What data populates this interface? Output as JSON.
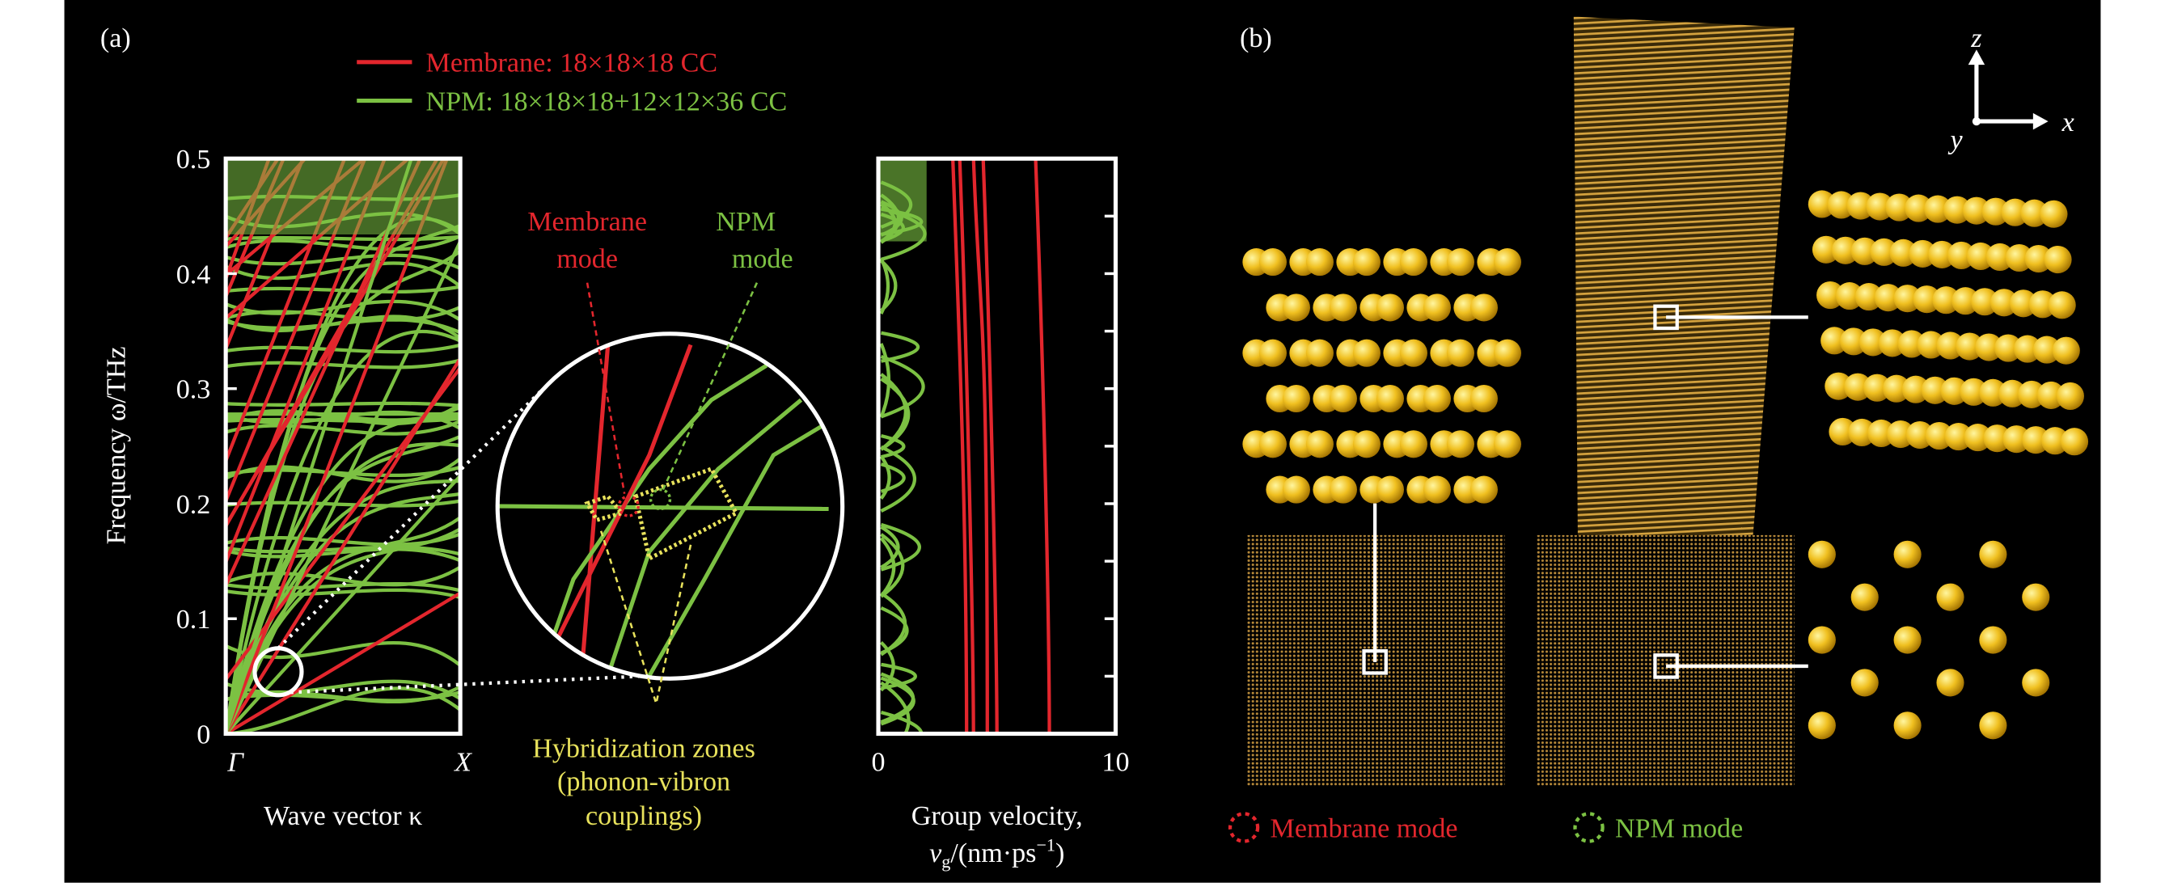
{
  "panel_a": {
    "label": "(a)",
    "legend": [
      {
        "text": "Membrane: 18×18×18 CC",
        "color": "#e3262d"
      },
      {
        "text": "NPM: 18×18×18+12×12×36 CC",
        "color": "#7cc143"
      }
    ],
    "dispersion": {
      "ylabel": "Frequency ω/THz",
      "xlabel": "Wave vector κ",
      "ylim": [
        0,
        0.5
      ],
      "yticks": [
        0,
        0.1,
        0.2,
        0.3,
        0.4,
        0.5
      ],
      "xticks": [
        "Γ",
        "X"
      ]
    },
    "zoom": {
      "membrane_label": [
        "Membrane",
        "mode"
      ],
      "npm_label": [
        "NPM",
        "mode"
      ],
      "hybrid_label": [
        "Hybridization zones",
        "(phonon-vibron",
        "couplings)"
      ]
    },
    "velocity": {
      "xlabel": [
        "Group velocity,",
        [
          "v",
          "g",
          "/(nm·ps",
          "−1",
          ")"
        ]
      ],
      "xlim": [
        0,
        10
      ],
      "xticks": [
        0,
        10
      ]
    }
  },
  "panel_b": {
    "label": "(b)",
    "axes": [
      "z",
      "x",
      "y"
    ],
    "legend": [
      "Membrane mode",
      "NPM mode"
    ]
  }
}
